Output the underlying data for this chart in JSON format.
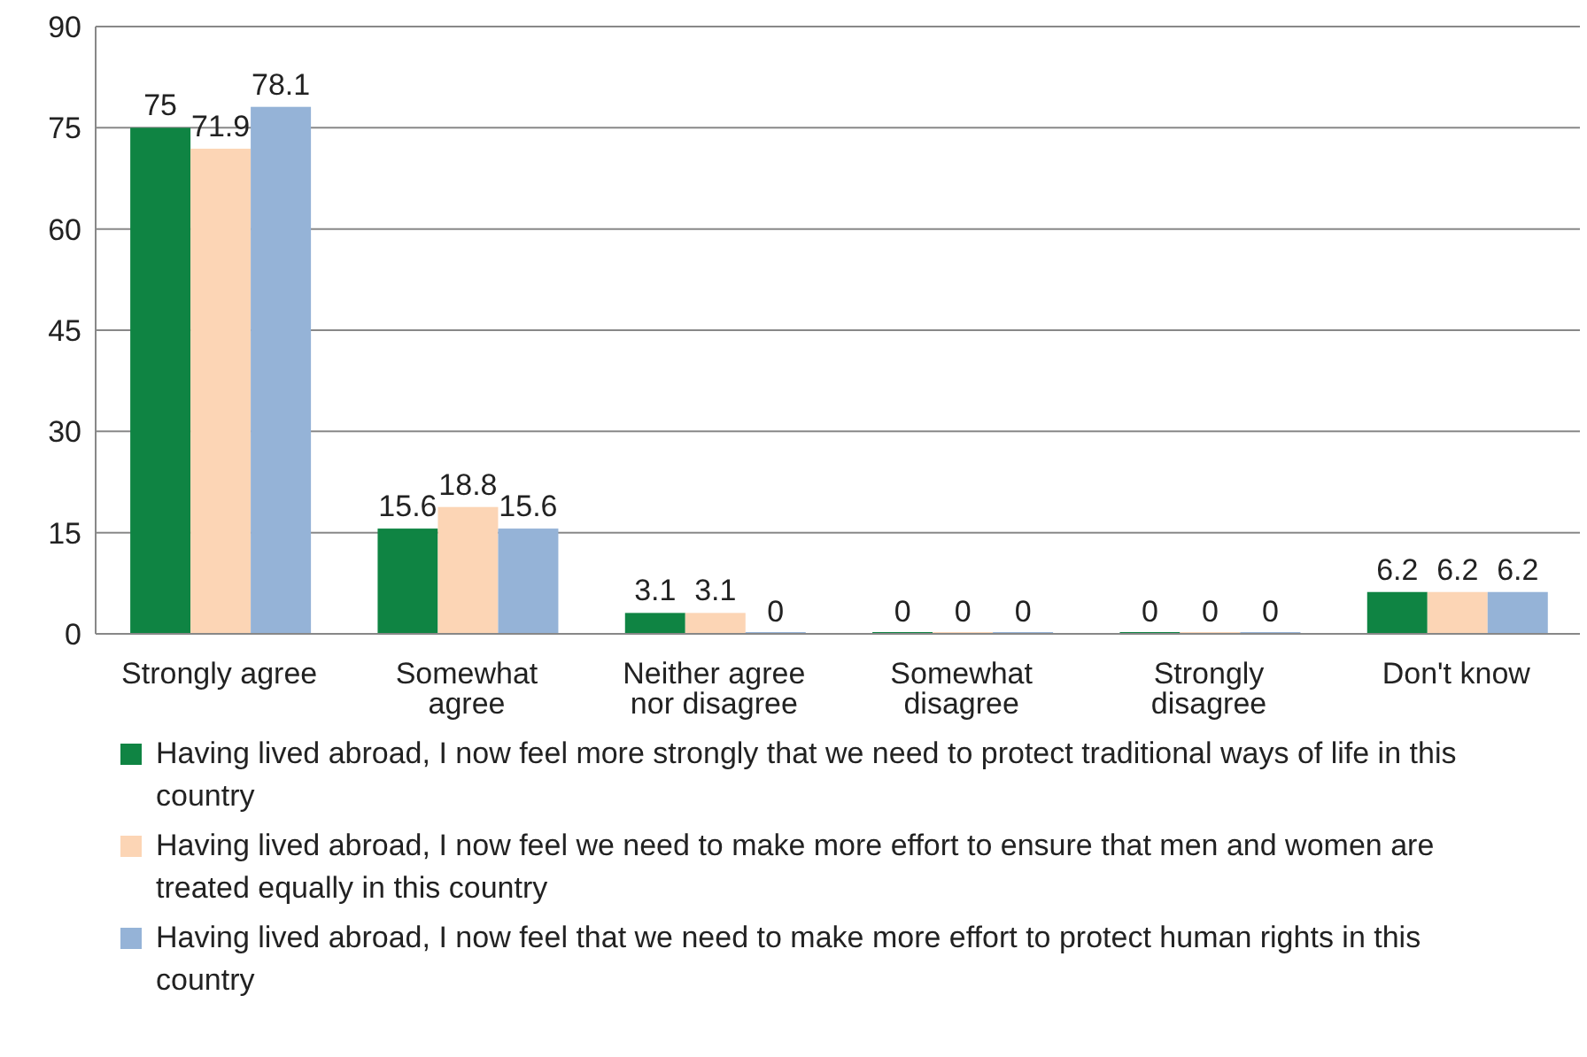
{
  "chart_data": {
    "type": "bar",
    "categories": [
      "Strongly agree",
      "Somewhat agree",
      "Neither agree nor disagree",
      "Somewhat disagree",
      "Strongly disagree",
      "Don't know"
    ],
    "series": [
      {
        "name": "Having lived abroad, I now feel more strongly that we need to protect traditional ways of life in this country",
        "color": "#0f8443",
        "values": [
          75,
          15.6,
          3.1,
          0,
          0,
          6.2
        ]
      },
      {
        "name": "Having lived abroad, I now feel we need to make more effort to ensure that men and women are treated equally in this country",
        "color": "#fcd5b5",
        "values": [
          71.9,
          18.8,
          3.1,
          0,
          0,
          6.2
        ]
      },
      {
        "name": "Having lived abroad, I now feel that we need to make more effort to protect human rights in this country",
        "color": "#95b3d7",
        "values": [
          78.1,
          15.6,
          0,
          0,
          0,
          6.2
        ]
      }
    ],
    "ylim": [
      0,
      90
    ],
    "yticks": [
      0,
      15,
      30,
      45,
      60,
      75,
      90
    ],
    "grid": "y",
    "legend": "bottom",
    "data_labels": true
  }
}
